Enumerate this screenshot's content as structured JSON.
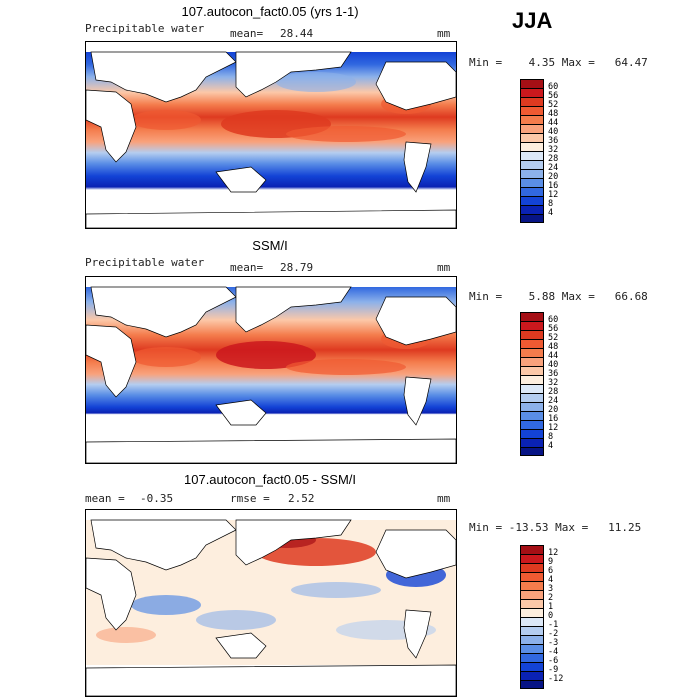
{
  "season": "JJA",
  "panels": [
    {
      "title": "107.autocon_fact0.05 (yrs 1-1)",
      "variable": "Precipitable water",
      "mean_label": "mean=",
      "mean": "28.44",
      "units": "mm",
      "minmax": "Min =    4.35 Max =   64.47",
      "levels": [
        "60",
        "56",
        "52",
        "48",
        "44",
        "40",
        "36",
        "32",
        "28",
        "24",
        "20",
        "16",
        "12",
        "8",
        "4"
      ],
      "colors": [
        "#a50f15",
        "#cb181d",
        "#de3a20",
        "#ef5a32",
        "#f47c4c",
        "#f9a27c",
        "#fcc8a8",
        "#fdeede",
        "#dce8f7",
        "#b4cdf0",
        "#8cb1ea",
        "#5a8ee6",
        "#3168e0",
        "#1343d6",
        "#0a22b4",
        "#071485"
      ]
    },
    {
      "title": "SSM/I",
      "variable": "Precipitable water",
      "mean_label": "mean=",
      "mean": "28.79",
      "units": "mm",
      "minmax": "Min =    5.88 Max =   66.68",
      "levels": [
        "60",
        "56",
        "52",
        "48",
        "44",
        "40",
        "36",
        "32",
        "28",
        "24",
        "20",
        "16",
        "12",
        "8",
        "4"
      ],
      "colors": [
        "#a50f15",
        "#cb181d",
        "#de3a20",
        "#ef5a32",
        "#f47c4c",
        "#f9a27c",
        "#fcc8a8",
        "#fdeede",
        "#dce8f7",
        "#b4cdf0",
        "#8cb1ea",
        "#5a8ee6",
        "#3168e0",
        "#1343d6",
        "#0a22b4",
        "#071485"
      ]
    },
    {
      "title": "107.autocon_fact0.05 - SSM/I",
      "mean_label": "mean =",
      "mean": "-0.35",
      "rmse_label": "rmse =",
      "rmse": "2.52",
      "units": "mm",
      "minmax": "Min = -13.53 Max =   11.25",
      "levels": [
        "12",
        "9",
        "6",
        "4",
        "3",
        "2",
        "1",
        "0",
        "-1",
        "-2",
        "-3",
        "-4",
        "-6",
        "-9",
        "-12"
      ],
      "colors": [
        "#a50f15",
        "#cb181d",
        "#de3a20",
        "#ef5a32",
        "#f47c4c",
        "#f9a27c",
        "#fcc8a8",
        "#fdeede",
        "#dce8f7",
        "#b4cdf0",
        "#8cb1ea",
        "#5a8ee6",
        "#3168e0",
        "#1343d6",
        "#0a22b4",
        "#071485"
      ]
    }
  ]
}
